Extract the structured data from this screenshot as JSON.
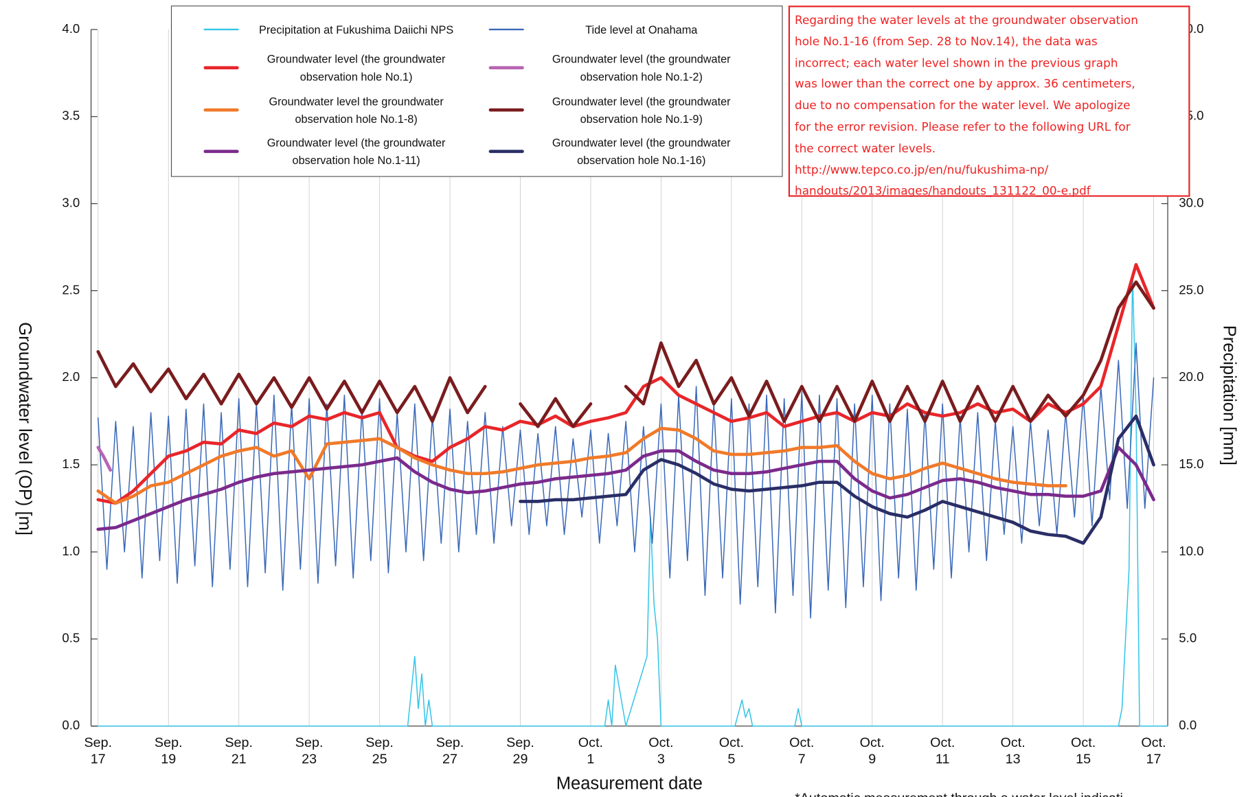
{
  "chart_data": {
    "type": "line",
    "ylabel": "Groundwater level (OP) [m]",
    "y2label": "Precipitation [mm]",
    "xlabel": "Measurement date",
    "xlim": [
      -0.2,
      30.4
    ],
    "xticks": [
      {
        "value": 0,
        "label": "Sep. 17"
      },
      {
        "value": 2,
        "label": "Sep. 19"
      },
      {
        "value": 4,
        "label": "Sep. 21"
      },
      {
        "value": 6,
        "label": "Sep. 23"
      },
      {
        "value": 8,
        "label": "Sep. 25"
      },
      {
        "value": 10,
        "label": "Sep. 27"
      },
      {
        "value": 12,
        "label": "Sep. 29"
      },
      {
        "value": 14,
        "label": "Oct. 1"
      },
      {
        "value": 16,
        "label": "Oct. 3"
      },
      {
        "value": 18,
        "label": "Oct. 5"
      },
      {
        "value": 20,
        "label": "Oct. 7"
      },
      {
        "value": 22,
        "label": "Oct. 9"
      },
      {
        "value": 24,
        "label": "Oct. 11"
      },
      {
        "value": 26,
        "label": "Oct. 13"
      },
      {
        "value": 28,
        "label": "Oct. 15"
      },
      {
        "value": 30,
        "label": "Oct. 17"
      }
    ],
    "ylim": [
      0,
      4
    ],
    "yticks": [
      {
        "value": 0,
        "label": "0.0"
      },
      0.5,
      {
        "value": 1,
        "label": "1.0"
      },
      1.5,
      {
        "value": 2,
        "label": "2.0"
      },
      2.5,
      {
        "value": 3,
        "label": "3.0"
      },
      3.5,
      {
        "value": 4,
        "label": "4.0"
      }
    ],
    "y2lim": [
      0,
      40
    ],
    "y2ticks": [
      {
        "value": 0,
        "label": "0.0"
      },
      {
        "value": 5,
        "label": "5.0"
      },
      {
        "value": 10,
        "label": "10.0"
      },
      {
        "value": 15,
        "label": "15.0"
      },
      {
        "value": 20,
        "label": "20.0"
      },
      {
        "value": 25,
        "label": "25.0"
      },
      {
        "value": 30,
        "label": "30.0"
      },
      {
        "value": 35,
        "label": "35.0"
      },
      {
        "value": 40,
        "label": "40.0"
      }
    ],
    "grid": true,
    "x": [
      0,
      0.5,
      1,
      1.5,
      2,
      2.5,
      3,
      3.5,
      4,
      4.5,
      5,
      5.5,
      6,
      6.5,
      7,
      7.5,
      8,
      8.5,
      9,
      9.5,
      10,
      10.5,
      11,
      11.5,
      12,
      12.5,
      13,
      13.5,
      14,
      14.5,
      15,
      15.5,
      16,
      16.5,
      17,
      17.5,
      18,
      18.5,
      19,
      19.5,
      20,
      20.5,
      21,
      21.5,
      22,
      22.5,
      23,
      23.5,
      24,
      24.5,
      25,
      25.5,
      26,
      26.5,
      27,
      27.5,
      28,
      28.5,
      29,
      29.5,
      30
    ],
    "series": [
      {
        "name": "Precipitation at Fukushima Daiichi NPS",
        "color": "#33c4e8",
        "axis": "y2",
        "x": [
          0,
          8.8,
          9.0,
          9.1,
          9.2,
          9.3,
          9.4,
          9.5,
          14.4,
          14.5,
          14.6,
          14.7,
          15.0,
          15.6,
          15.7,
          15.8,
          15.9,
          16.0,
          16.1,
          16.2,
          18.1,
          18.3,
          18.4,
          18.5,
          18.6,
          19.8,
          19.9,
          20.0,
          29.0,
          29.1,
          29.2,
          29.3,
          29.4,
          29.5,
          29.6,
          29.7,
          30.4
        ],
        "values": [
          0,
          0,
          4,
          1,
          3,
          0,
          1.5,
          0,
          0,
          1.5,
          0,
          3.5,
          0,
          4,
          12,
          7,
          5,
          0,
          0,
          0,
          0,
          1.5,
          0.5,
          1,
          0,
          0,
          1,
          0,
          0,
          1,
          5,
          9,
          26,
          18,
          0,
          0,
          0
        ]
      },
      {
        "name": "Tide level at Onahama",
        "color": "#3a68b8",
        "x": [
          0,
          0.25,
          0.5,
          0.75,
          1,
          1.25,
          1.5,
          1.75,
          2,
          2.25,
          2.5,
          2.75,
          3,
          3.25,
          3.5,
          3.75,
          4,
          4.25,
          4.5,
          4.75,
          5,
          5.25,
          5.5,
          5.75,
          6,
          6.25,
          6.5,
          6.75,
          7,
          7.25,
          7.5,
          7.75,
          8,
          8.25,
          8.5,
          8.75,
          9,
          9.25,
          9.5,
          9.75,
          10,
          10.25,
          10.5,
          10.75,
          11,
          11.25,
          11.5,
          11.75,
          12,
          12.25,
          12.5,
          12.75,
          13,
          13.25,
          13.5,
          13.75,
          14,
          14.25,
          14.5,
          14.75,
          15,
          15.25,
          15.5,
          15.75,
          16,
          16.25,
          16.5,
          16.75,
          17,
          17.25,
          17.5,
          17.75,
          18,
          18.25,
          18.5,
          18.75,
          19,
          19.25,
          19.5,
          19.75,
          20,
          20.25,
          20.5,
          20.75,
          21,
          21.25,
          21.5,
          21.75,
          22,
          22.25,
          22.5,
          22.75,
          23,
          23.25,
          23.5,
          23.75,
          24,
          24.25,
          24.5,
          24.75,
          25,
          25.25,
          25.5,
          25.75,
          26,
          26.25,
          26.5,
          26.75,
          27,
          27.25,
          27.5,
          27.75,
          28,
          28.25,
          28.5,
          28.75,
          29,
          29.25,
          29.5,
          29.75,
          30
        ],
        "values": [
          1.77,
          0.9,
          1.75,
          1.0,
          1.72,
          0.85,
          1.8,
          0.95,
          1.78,
          0.82,
          1.82,
          0.92,
          1.85,
          0.8,
          1.8,
          0.9,
          1.88,
          0.8,
          1.85,
          0.88,
          1.9,
          0.78,
          1.85,
          0.9,
          1.88,
          0.82,
          1.85,
          0.92,
          1.9,
          0.85,
          1.82,
          0.95,
          1.88,
          0.88,
          1.8,
          1.0,
          1.85,
          0.95,
          1.78,
          1.05,
          1.82,
          1.0,
          1.75,
          1.1,
          1.8,
          1.05,
          1.72,
          1.15,
          1.7,
          1.1,
          1.68,
          1.15,
          1.72,
          1.1,
          1.65,
          1.2,
          1.7,
          1.05,
          1.68,
          1.15,
          1.75,
          1.0,
          1.72,
          1.05,
          1.85,
          0.85,
          1.9,
          0.95,
          1.95,
          0.75,
          1.85,
          0.85,
          1.88,
          0.7,
          1.85,
          0.8,
          1.9,
          0.65,
          1.88,
          0.75,
          1.92,
          0.62,
          1.9,
          0.78,
          1.88,
          0.68,
          1.85,
          0.8,
          1.9,
          0.72,
          1.85,
          0.85,
          1.82,
          0.78,
          1.8,
          0.9,
          1.85,
          0.85,
          1.78,
          1.0,
          1.8,
          0.95,
          1.75,
          1.1,
          1.72,
          1.05,
          1.75,
          1.15,
          1.7,
          1.1,
          1.8,
          1.2,
          1.9,
          1.15,
          1.95,
          1.3,
          2.1,
          1.25,
          2.2,
          1.25,
          2.0
        ]
      },
      {
        "name": "Groundwater level (the groundwater observation hole No.1)",
        "color": "#e8262a",
        "values": [
          1.3,
          1.28,
          1.35,
          1.45,
          1.55,
          1.58,
          1.63,
          1.62,
          1.7,
          1.68,
          1.74,
          1.72,
          1.78,
          1.76,
          1.8,
          1.77,
          1.8,
          1.6,
          1.55,
          1.52,
          1.6,
          1.65,
          1.72,
          1.7,
          1.75,
          1.73,
          1.78,
          1.72,
          1.75,
          1.77,
          1.8,
          1.95,
          2.0,
          1.9,
          1.85,
          1.8,
          1.75,
          1.77,
          1.8,
          1.72,
          1.75,
          1.78,
          1.8,
          1.75,
          1.8,
          1.78,
          1.85,
          1.8,
          1.78,
          1.8,
          1.85,
          1.8,
          1.82,
          1.75,
          1.85,
          1.8,
          1.85,
          1.95,
          2.3,
          2.65,
          2.4
        ]
      },
      {
        "name": "Groundwater level (the groundwater observation hole No.1-2)",
        "color": "#b865b2",
        "x": [
          0,
          0.15,
          0.35
        ],
        "values": [
          1.6,
          1.55,
          1.47
        ]
      },
      {
        "name": "Groundwater level the groundwater observation hole No.1-8)",
        "color": "#f07a2a",
        "values": [
          1.35,
          1.28,
          1.32,
          1.38,
          1.4,
          1.45,
          1.5,
          1.55,
          1.58,
          1.6,
          1.55,
          1.58,
          1.42,
          1.62,
          1.63,
          1.64,
          1.65,
          1.6,
          1.54,
          1.5,
          1.47,
          1.45,
          1.45,
          1.46,
          1.48,
          1.5,
          1.51,
          1.52,
          1.54,
          1.55,
          1.57,
          1.65,
          1.71,
          1.7,
          1.65,
          1.58,
          1.56,
          1.56,
          1.57,
          1.58,
          1.6,
          1.6,
          1.61,
          1.52,
          1.45,
          1.42,
          1.44,
          1.48,
          1.51,
          1.48,
          1.45,
          1.42,
          1.4,
          1.39,
          1.38,
          1.38,
          null,
          null,
          null,
          null,
          null
        ]
      },
      {
        "name": "Groundwater level (the groundwater observation hole No.1-9)",
        "color": "#7a1c1e",
        "values": [
          2.15,
          1.95,
          2.08,
          1.92,
          2.05,
          1.88,
          2.02,
          1.85,
          2.02,
          1.85,
          2.0,
          1.83,
          2.0,
          1.82,
          1.98,
          1.8,
          1.98,
          1.8,
          1.95,
          1.75,
          2.0,
          1.8,
          1.95,
          null,
          1.85,
          1.72,
          1.88,
          1.72,
          1.85,
          null,
          1.95,
          1.85,
          2.2,
          1.95,
          2.1,
          1.85,
          2.0,
          1.78,
          1.98,
          1.75,
          1.95,
          1.75,
          1.95,
          1.75,
          1.98,
          1.75,
          1.95,
          1.75,
          1.98,
          1.75,
          1.95,
          1.75,
          1.95,
          1.75,
          1.9,
          1.78,
          1.9,
          2.1,
          2.4,
          2.55,
          2.4
        ]
      },
      {
        "name": "Groundwater level (the groundwater observation hole No.1-11)",
        "color": "#7b2a8c",
        "values": [
          1.13,
          1.14,
          1.18,
          1.22,
          1.26,
          1.3,
          1.33,
          1.36,
          1.4,
          1.43,
          1.45,
          1.46,
          1.47,
          1.48,
          1.49,
          1.5,
          1.52,
          1.54,
          1.46,
          1.4,
          1.36,
          1.34,
          1.35,
          1.37,
          1.39,
          1.4,
          1.42,
          1.43,
          1.44,
          1.45,
          1.47,
          1.55,
          1.58,
          1.58,
          1.52,
          1.47,
          1.45,
          1.45,
          1.46,
          1.48,
          1.5,
          1.52,
          1.52,
          1.42,
          1.35,
          1.31,
          1.33,
          1.37,
          1.41,
          1.42,
          1.4,
          1.37,
          1.35,
          1.33,
          1.33,
          1.32,
          1.32,
          1.35,
          1.6,
          1.5,
          1.3
        ]
      },
      {
        "name": "Groundwater level  (the groundwater observation hole No.1-16)",
        "color": "#2a2e66",
        "values": [
          null,
          null,
          null,
          null,
          null,
          null,
          null,
          null,
          null,
          null,
          null,
          null,
          null,
          null,
          null,
          null,
          null,
          null,
          null,
          null,
          null,
          null,
          null,
          null,
          1.29,
          1.29,
          1.3,
          1.3,
          1.31,
          1.32,
          1.33,
          1.47,
          1.53,
          1.5,
          1.45,
          1.39,
          1.36,
          1.35,
          1.36,
          1.37,
          1.38,
          1.4,
          1.4,
          1.32,
          1.26,
          1.22,
          1.2,
          1.24,
          1.29,
          1.26,
          1.23,
          1.2,
          1.17,
          1.12,
          1.1,
          1.09,
          1.05,
          1.2,
          1.65,
          1.78,
          1.5
        ]
      }
    ],
    "annotation": [
      "Regarding the water levels at the groundwater observation",
      "hole No.1-16 (from Sep. 28 to Nov.14), the data was",
      "incorrect; each water level shown in the previous graph",
      "was lower than the correct one by approx. 36 centimeters,",
      "due to no compensation for the water level. We apologize",
      "for the error revision. Please refer to the following URL for",
      "the correct water levels.",
      "http://www.tepco.co.jp/en/nu/fukushima-np/",
      "handouts/2013/images/handouts_131122_00-e.pdf"
    ],
    "footnote": "*Automatic measurement through a water level indicati"
  }
}
